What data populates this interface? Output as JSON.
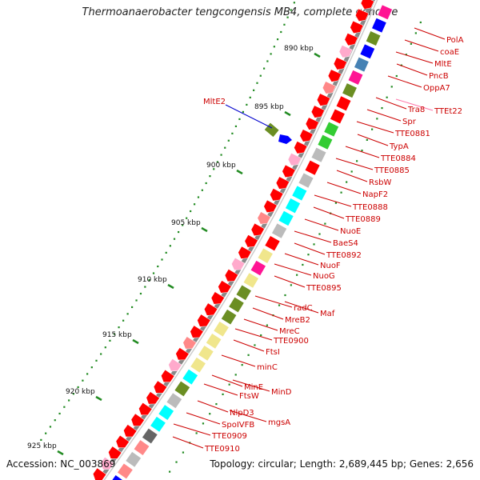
{
  "title": "Thermoanaerobacter tengcongensis MB4, complete genome",
  "footer": {
    "accession": "Accession: NC_003869",
    "summary": "Topology: circular; Length: 2,689,445 bp; Genes: 2,656"
  },
  "colors": {
    "gene_red": "#ff0000",
    "label_red": "#cc0000",
    "blue": "#0000ff",
    "steel": "#4682b4",
    "magenta": "#ff1493",
    "olive": "#6b8e23",
    "green": "#33cc33",
    "cyan": "#00ffff",
    "gray": "#bbbbbb",
    "dark_gray": "#666666",
    "khaki": "#f0e68c",
    "pink": "#ff77aa",
    "light_pink": "#ffaacc",
    "salmon": "#ff8888",
    "dots": "#228b22"
  },
  "scale": {
    "ticks": [
      "890 kbp",
      "895 kbp",
      "900 kbp",
      "905 kbp",
      "910 kbp",
      "915 kbp",
      "920 kbp",
      "925 kbp"
    ]
  },
  "genes": [
    {
      "name": "PolA",
      "color": "#cc0000"
    },
    {
      "name": "coaE",
      "color": "#cc0000"
    },
    {
      "name": "MltE",
      "color": "#cc0000"
    },
    {
      "name": "PncB",
      "color": "#cc0000"
    },
    {
      "name": "OppA7",
      "color": "#cc0000"
    },
    {
      "name": "TTEt22",
      "color": "#ff77aa"
    },
    {
      "name": "Tra8",
      "color": "#cc0000"
    },
    {
      "name": "Spr",
      "color": "#cc0000"
    },
    {
      "name": "TTE0881",
      "color": "#cc0000"
    },
    {
      "name": "TypA",
      "color": "#cc0000"
    },
    {
      "name": "TTE0884",
      "color": "#cc0000"
    },
    {
      "name": "TTE0885",
      "color": "#cc0000"
    },
    {
      "name": "RsbW",
      "color": "#cc0000"
    },
    {
      "name": "NapF2",
      "color": "#cc0000"
    },
    {
      "name": "TTE0888",
      "color": "#cc0000"
    },
    {
      "name": "TTE0889",
      "color": "#cc0000"
    },
    {
      "name": "NuoE",
      "color": "#cc0000"
    },
    {
      "name": "BaeS4",
      "color": "#cc0000"
    },
    {
      "name": "TTE0892",
      "color": "#cc0000"
    },
    {
      "name": "NuoF",
      "color": "#cc0000"
    },
    {
      "name": "NuoG",
      "color": "#cc0000"
    },
    {
      "name": "TTE0895",
      "color": "#cc0000"
    },
    {
      "name": "Maf",
      "color": "#cc0000"
    },
    {
      "name": "radC",
      "color": "#cc0000"
    },
    {
      "name": "MreB2",
      "color": "#cc0000"
    },
    {
      "name": "MreC",
      "color": "#cc0000"
    },
    {
      "name": "TTE0900",
      "color": "#cc0000"
    },
    {
      "name": "FtsI",
      "color": "#cc0000"
    },
    {
      "name": "minC",
      "color": "#cc0000"
    },
    {
      "name": "MinD",
      "color": "#cc0000"
    },
    {
      "name": "MinE",
      "color": "#cc0000"
    },
    {
      "name": "FtsW",
      "color": "#cc0000"
    },
    {
      "name": "mgsA",
      "color": "#cc0000"
    },
    {
      "name": "NlpD3",
      "color": "#cc0000"
    },
    {
      "name": "SpoIVFB",
      "color": "#cc0000"
    },
    {
      "name": "TTE0909",
      "color": "#cc0000"
    },
    {
      "name": "TTE0910",
      "color": "#cc0000"
    }
  ],
  "extra_label": {
    "name": "MltE2",
    "color": "#0000cc"
  }
}
